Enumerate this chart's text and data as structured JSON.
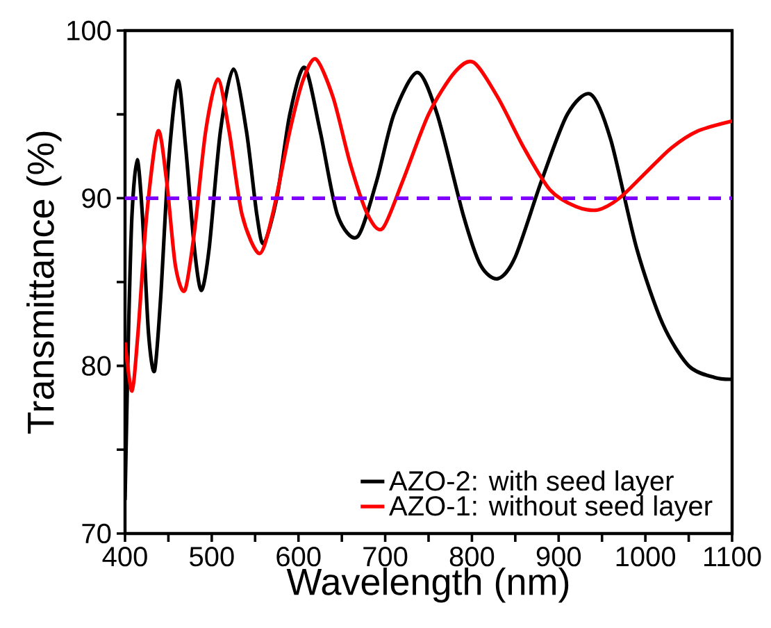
{
  "chart_data": {
    "type": "line",
    "xlabel": "Wavelength (nm)",
    "ylabel": "Transmittance (%)",
    "xlim": [
      400,
      1100
    ],
    "ylim": [
      70,
      100
    ],
    "xticks": [
      400,
      {
        "value": 450,
        "label": null
      },
      500,
      {
        "value": 550,
        "label": null
      },
      600,
      {
        "value": 650,
        "label": null
      },
      700,
      {
        "value": 750,
        "label": null
      },
      800,
      {
        "value": 850,
        "label": null
      },
      900,
      {
        "value": 950,
        "label": null
      },
      1000,
      {
        "value": 1050,
        "label": null
      },
      1100
    ],
    "yticks": [
      70,
      {
        "value": 75,
        "label": null
      },
      80,
      {
        "value": 85,
        "label": null
      },
      90,
      {
        "value": 95,
        "label": null
      },
      100
    ],
    "grid": false,
    "legend": "bottom right",
    "marker": "none",
    "line_style": "solid",
    "ref_lines": [
      {
        "axis": "y",
        "value": 90,
        "color": "#8000ff",
        "line_style": "dashed"
      }
    ],
    "series": [
      {
        "name": "AZO-2: with seed layer",
        "color": "#000000",
        "x": [
          400,
          404,
          408,
          414,
          420,
          427,
          434,
          441,
          450,
          461,
          470,
          480,
          488,
          497,
          510,
          525,
          540,
          552,
          560,
          575,
          590,
          607,
          625,
          645,
          668,
          690,
          710,
          737,
          760,
          790,
          810,
          830,
          850,
          880,
          910,
          937,
          960,
          990,
          1020,
          1050,
          1080,
          1100
        ],
        "values": [
          72,
          82,
          89,
          92.3,
          89,
          82,
          79.7,
          84,
          92,
          97.0,
          93,
          87,
          84.5,
          87,
          94,
          97.7,
          94,
          89,
          87.3,
          90,
          95,
          97.8,
          94,
          89,
          87.7,
          91,
          95,
          97.5,
          95,
          89,
          86,
          85.2,
          86.5,
          91,
          95,
          96.2,
          93.5,
          87,
          82.5,
          80,
          79.3,
          79.2
        ]
      },
      {
        "name": "AZO-1: without seed layer",
        "color": "#ff0000",
        "x": [
          400,
          408,
          415,
          425,
          438,
          448,
          458,
          469,
          480,
          493,
          507,
          520,
          535,
          555,
          570,
          590,
          605,
          620,
          640,
          660,
          680,
          697,
          720,
          750,
          780,
          802,
          830,
          860,
          890,
          920,
          945,
          970,
          1000,
          1030,
          1060,
          1100
        ],
        "values": [
          81.4,
          78.5,
          82,
          89,
          94.0,
          91,
          86,
          84.5,
          88,
          94,
          97.1,
          94,
          89,
          86.7,
          89,
          94,
          97,
          98.3,
          96,
          92,
          89,
          88.2,
          91,
          95,
          97.5,
          98.1,
          96,
          93,
          90.5,
          89.5,
          89.3,
          90,
          91.5,
          93,
          94,
          94.6
        ]
      }
    ]
  }
}
